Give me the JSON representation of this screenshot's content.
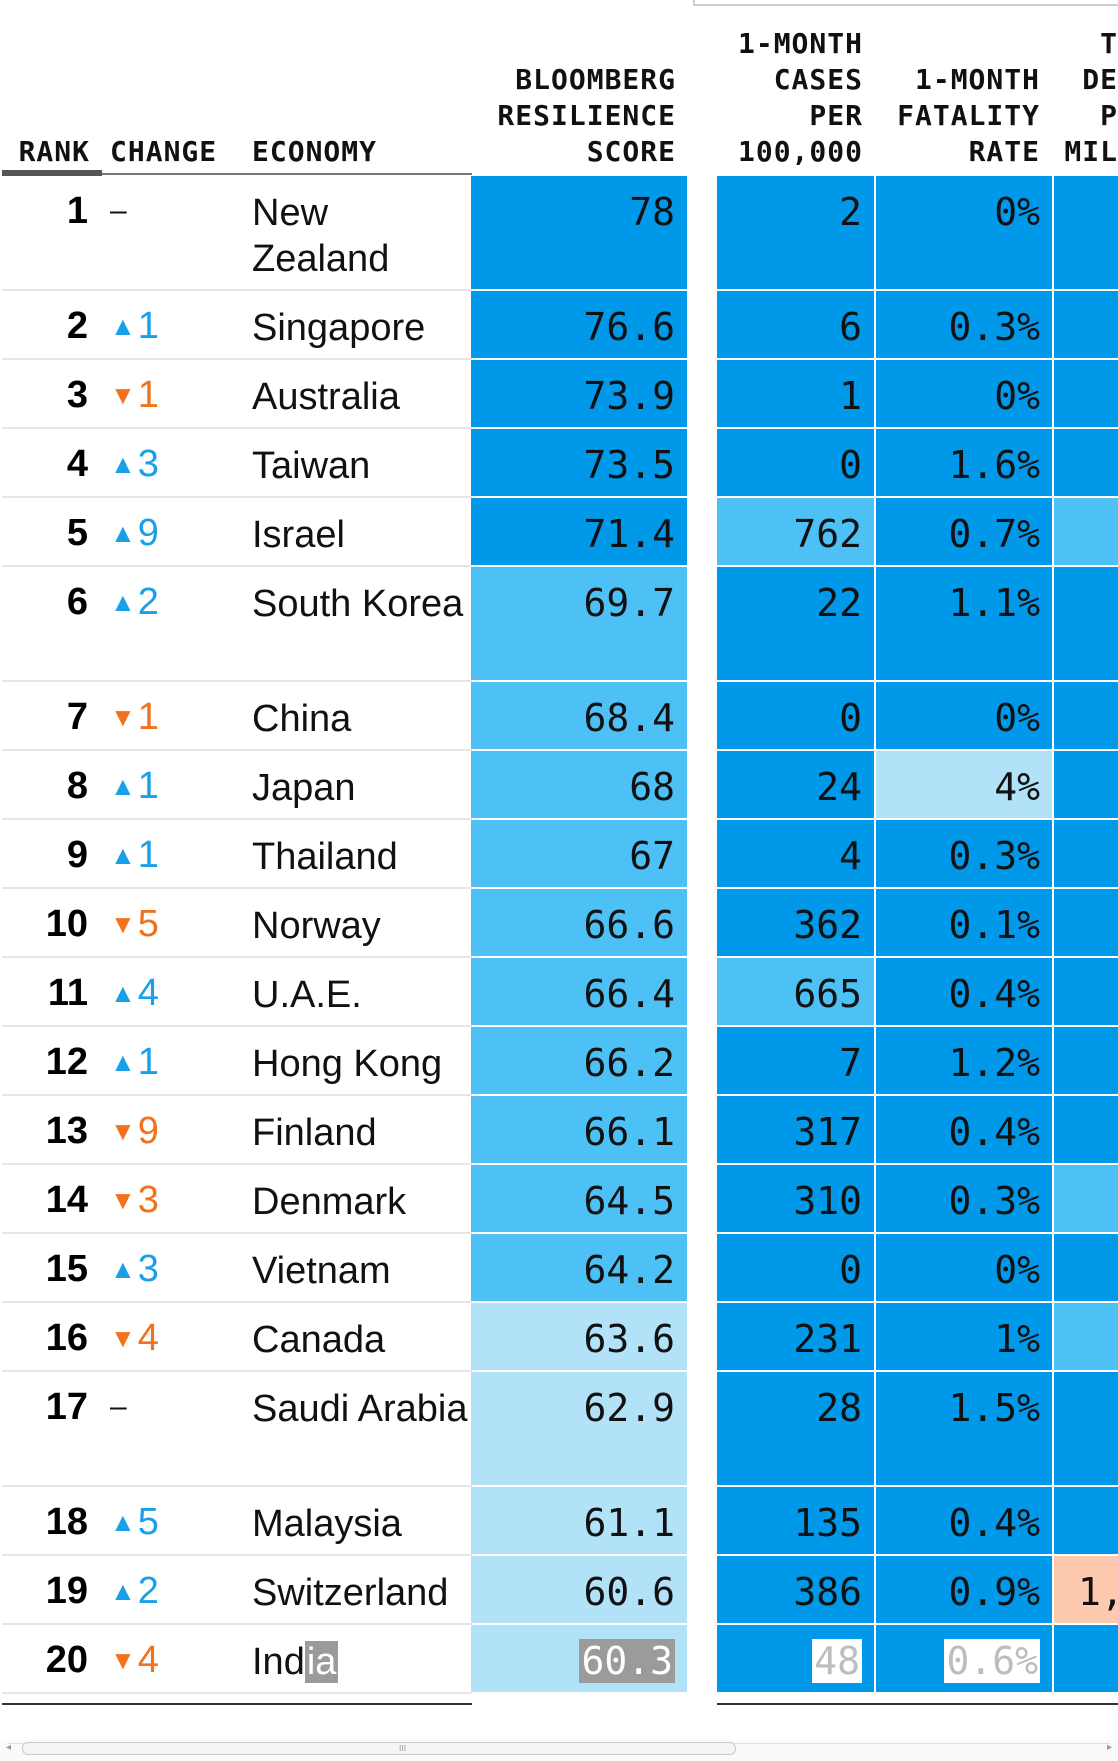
{
  "colors": {
    "scale_dark": "#0099ea",
    "scale_mid": "#4dc1f5",
    "scale_light": "#b2e2f7",
    "death_warm": "#fdcab0",
    "up": "#1aa0e8",
    "down": "#f2721c"
  },
  "headers": {
    "rank": "RANK",
    "change": "CHANGE",
    "economy": "ECONOMY",
    "score": "BLOOMBERG\nRESILIENCE\nSCORE",
    "cases": "1-MONTH\nCASES\nPER\n100,000",
    "fatality": "1-MONTH\nFATALITY\nRATE",
    "deaths": "T\nDE\nP\nMIL"
  },
  "rows": [
    {
      "rank": "1",
      "dir": "none",
      "change": "–",
      "economy": "New Zealand",
      "score": "78",
      "score_tone": "dark",
      "cases": "2",
      "cases_tone": "dark",
      "fatality": "0%",
      "fatality_tone": "dark",
      "deaths": "",
      "deaths_tone": "dark"
    },
    {
      "rank": "2",
      "dir": "up",
      "change": "1",
      "economy": "Singapore",
      "score": "76.6",
      "score_tone": "dark",
      "cases": "6",
      "cases_tone": "dark",
      "fatality": "0.3%",
      "fatality_tone": "dark",
      "deaths": "",
      "deaths_tone": "dark"
    },
    {
      "rank": "3",
      "dir": "down",
      "change": "1",
      "economy": "Australia",
      "score": "73.9",
      "score_tone": "dark",
      "cases": "1",
      "cases_tone": "dark",
      "fatality": "0%",
      "fatality_tone": "dark",
      "deaths": "",
      "deaths_tone": "dark"
    },
    {
      "rank": "4",
      "dir": "up",
      "change": "3",
      "economy": "Taiwan",
      "score": "73.5",
      "score_tone": "dark",
      "cases": "0",
      "cases_tone": "dark",
      "fatality": "1.6%",
      "fatality_tone": "dark",
      "deaths": "",
      "deaths_tone": "dark"
    },
    {
      "rank": "5",
      "dir": "up",
      "change": "9",
      "economy": "Israel",
      "score": "71.4",
      "score_tone": "dark",
      "cases": "762",
      "cases_tone": "mid",
      "fatality": "0.7%",
      "fatality_tone": "dark",
      "deaths": "",
      "deaths_tone": "mid"
    },
    {
      "rank": "6",
      "dir": "up",
      "change": "2",
      "economy": "South Korea",
      "score": "69.7",
      "score_tone": "mid",
      "cases": "22",
      "cases_tone": "dark",
      "fatality": "1.1%",
      "fatality_tone": "dark",
      "deaths": "",
      "deaths_tone": "dark"
    },
    {
      "rank": "7",
      "dir": "down",
      "change": "1",
      "economy": "China",
      "score": "68.4",
      "score_tone": "mid",
      "cases": "0",
      "cases_tone": "dark",
      "fatality": "0%",
      "fatality_tone": "dark",
      "deaths": "",
      "deaths_tone": "dark"
    },
    {
      "rank": "8",
      "dir": "up",
      "change": "1",
      "economy": "Japan",
      "score": "68",
      "score_tone": "mid",
      "cases": "24",
      "cases_tone": "dark",
      "fatality": "4%",
      "fatality_tone": "light",
      "deaths": "",
      "deaths_tone": "dark"
    },
    {
      "rank": "9",
      "dir": "up",
      "change": "1",
      "economy": "Thailand",
      "score": "67",
      "score_tone": "mid",
      "cases": "4",
      "cases_tone": "dark",
      "fatality": "0.3%",
      "fatality_tone": "dark",
      "deaths": "",
      "deaths_tone": "dark"
    },
    {
      "rank": "10",
      "dir": "down",
      "change": "5",
      "economy": "Norway",
      "score": "66.6",
      "score_tone": "mid",
      "cases": "362",
      "cases_tone": "dark",
      "fatality": "0.1%",
      "fatality_tone": "dark",
      "deaths": "",
      "deaths_tone": "dark"
    },
    {
      "rank": "11",
      "dir": "up",
      "change": "4",
      "economy": "U.A.E.",
      "score": "66.4",
      "score_tone": "mid",
      "cases": "665",
      "cases_tone": "mid",
      "fatality": "0.4%",
      "fatality_tone": "dark",
      "deaths": "",
      "deaths_tone": "dark"
    },
    {
      "rank": "12",
      "dir": "up",
      "change": "1",
      "economy": "Hong Kong",
      "score": "66.2",
      "score_tone": "mid",
      "cases": "7",
      "cases_tone": "dark",
      "fatality": "1.2%",
      "fatality_tone": "dark",
      "deaths": "",
      "deaths_tone": "dark"
    },
    {
      "rank": "13",
      "dir": "down",
      "change": "9",
      "economy": "Finland",
      "score": "66.1",
      "score_tone": "mid",
      "cases": "317",
      "cases_tone": "dark",
      "fatality": "0.4%",
      "fatality_tone": "dark",
      "deaths": "",
      "deaths_tone": "dark"
    },
    {
      "rank": "14",
      "dir": "down",
      "change": "3",
      "economy": "Denmark",
      "score": "64.5",
      "score_tone": "mid",
      "cases": "310",
      "cases_tone": "dark",
      "fatality": "0.3%",
      "fatality_tone": "dark",
      "deaths": "",
      "deaths_tone": "mid"
    },
    {
      "rank": "15",
      "dir": "up",
      "change": "3",
      "economy": "Vietnam",
      "score": "64.2",
      "score_tone": "mid",
      "cases": "0",
      "cases_tone": "dark",
      "fatality": "0%",
      "fatality_tone": "dark",
      "deaths": "",
      "deaths_tone": "dark"
    },
    {
      "rank": "16",
      "dir": "down",
      "change": "4",
      "economy": "Canada",
      "score": "63.6",
      "score_tone": "light",
      "cases": "231",
      "cases_tone": "dark",
      "fatality": "1%",
      "fatality_tone": "dark",
      "deaths": "",
      "deaths_tone": "mid"
    },
    {
      "rank": "17",
      "dir": "none",
      "change": "–",
      "economy": "Saudi Arabia",
      "score": "62.9",
      "score_tone": "light",
      "cases": "28",
      "cases_tone": "dark",
      "fatality": "1.5%",
      "fatality_tone": "dark",
      "deaths": "",
      "deaths_tone": "dark"
    },
    {
      "rank": "18",
      "dir": "up",
      "change": "5",
      "economy": "Malaysia",
      "score": "61.1",
      "score_tone": "light",
      "cases": "135",
      "cases_tone": "dark",
      "fatality": "0.4%",
      "fatality_tone": "dark",
      "deaths": "",
      "deaths_tone": "dark"
    },
    {
      "rank": "19",
      "dir": "up",
      "change": "2",
      "economy": "Switzerland",
      "score": "60.6",
      "score_tone": "light",
      "cases": "386",
      "cases_tone": "dark",
      "fatality": "0.9%",
      "fatality_tone": "dark",
      "deaths": "1,",
      "deaths_tone": "warm"
    },
    {
      "rank": "20",
      "dir": "down",
      "change": "4",
      "economy": "India",
      "score": "60.3",
      "score_tone": "light",
      "cases": "48",
      "cases_tone": "dark",
      "fatality": "0.6%",
      "fatality_tone": "dark",
      "deaths": "",
      "deaths_tone": "dark",
      "selected": true
    }
  ],
  "scrollbar": {
    "grip": "III",
    "left_arrow": "◂",
    "right_arrow": "▸"
  }
}
